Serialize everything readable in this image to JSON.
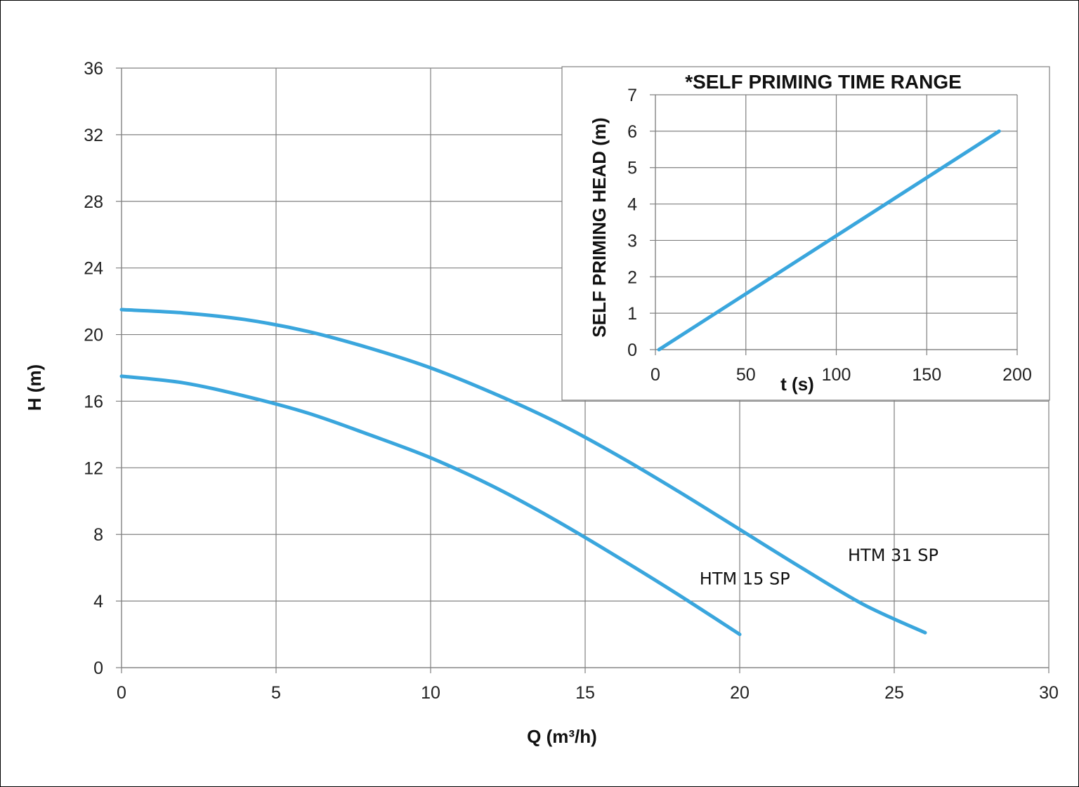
{
  "chart_data": [
    {
      "type": "line",
      "xlabel": "Q (m³/h)",
      "ylabel": "H (m)",
      "xlim": [
        0,
        30
      ],
      "ylim": [
        0,
        36
      ],
      "xticks": [
        0,
        5,
        10,
        15,
        20,
        25,
        30
      ],
      "yticks": [
        0,
        4,
        8,
        12,
        16,
        20,
        24,
        28,
        32,
        36
      ],
      "grid": true,
      "color": "#3AA6DD",
      "series": [
        {
          "name": "HTM 31 SP",
          "label_at": [
            23.5,
            6.4
          ],
          "x": [
            0,
            2,
            4,
            6,
            8,
            10,
            12,
            14,
            16,
            18,
            20,
            22,
            24,
            26
          ],
          "y": [
            21.5,
            21.3,
            20.9,
            20.2,
            19.2,
            18.0,
            16.5,
            14.8,
            12.8,
            10.6,
            8.3,
            6.0,
            3.8,
            2.1
          ]
        },
        {
          "name": "HTM 15 SP",
          "label_at": [
            18.7,
            5.0
          ],
          "x": [
            0,
            2,
            4,
            6,
            8,
            10,
            12,
            14,
            16,
            18,
            20
          ],
          "y": [
            17.5,
            17.1,
            16.3,
            15.3,
            14.0,
            12.6,
            10.9,
            8.9,
            6.7,
            4.4,
            2.0
          ]
        }
      ]
    },
    {
      "type": "line",
      "title": "*SELF PRIMING TIME RANGE",
      "xlabel": "t (s)",
      "ylabel": "SELF PRIMING HEAD (m)",
      "xlim": [
        0,
        200
      ],
      "ylim": [
        0,
        7
      ],
      "xticks": [
        0,
        50,
        100,
        150,
        200
      ],
      "yticks": [
        0,
        1,
        2,
        3,
        4,
        5,
        6,
        7
      ],
      "grid": true,
      "legend": "none",
      "color": "#3AA6DD",
      "series": [
        {
          "x": [
            2,
            190
          ],
          "y": [
            0,
            6
          ]
        }
      ]
    }
  ]
}
